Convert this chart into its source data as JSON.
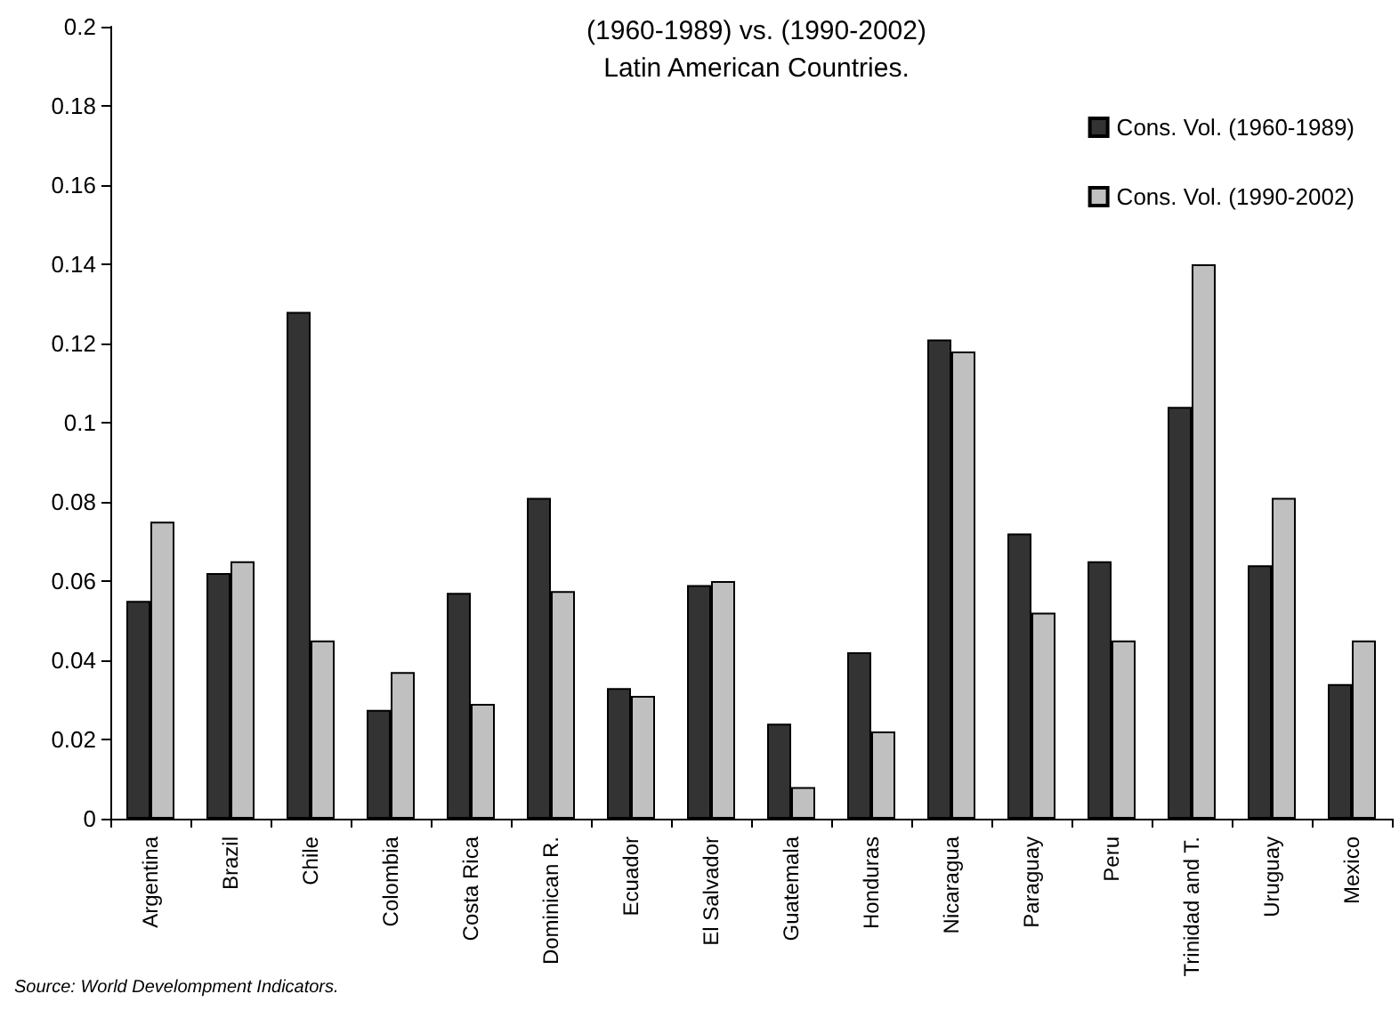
{
  "chart_data": {
    "type": "bar",
    "title": "(1960-1989) vs. (1990-2002)\nLatin American Countries.",
    "categories": [
      "Argentina",
      "Brazil",
      "Chile",
      "Colombia",
      "Costa Rica",
      "Dominican R.",
      "Ecuador",
      "El Salvador",
      "Guatemala",
      "Honduras",
      "Nicaragua",
      "Paraguay",
      "Peru",
      "Trinidad and T.",
      "Uruguay",
      "Mexico"
    ],
    "series": [
      {
        "name": "Cons. Vol. (1960-1989)",
        "color": "#333333",
        "values": [
          0.055,
          0.062,
          0.128,
          0.0275,
          0.057,
          0.081,
          0.033,
          0.059,
          0.024,
          0.042,
          0.121,
          0.072,
          0.065,
          0.104,
          0.064,
          0.034
        ]
      },
      {
        "name": "Cons. Vol. (1990-2002)",
        "color": "#c0c0c0",
        "values": [
          0.075,
          0.065,
          0.045,
          0.037,
          0.029,
          0.0575,
          0.031,
          0.06,
          0.008,
          0.022,
          0.118,
          0.052,
          0.045,
          0.14,
          0.081,
          0.045
        ]
      }
    ],
    "ylim": [
      0,
      0.2
    ],
    "yticks": [
      0,
      0.02,
      0.04,
      0.06,
      0.08,
      0.1,
      0.12,
      0.14,
      0.16,
      0.18,
      0.2
    ],
    "grid": false,
    "legend": "top right",
    "annotations": [
      "Source: World Develompment Indicators."
    ]
  }
}
